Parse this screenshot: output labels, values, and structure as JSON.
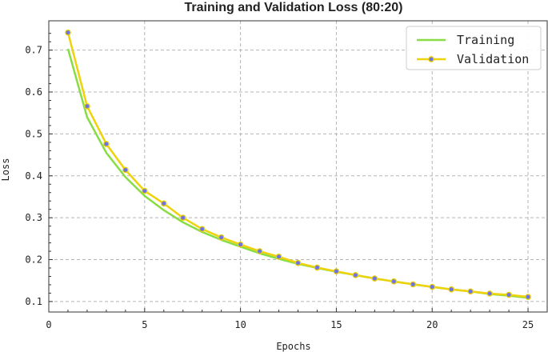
{
  "chart_data": {
    "type": "line",
    "title": "Training and Validation Loss (80:20)",
    "xlabel": "Epochs",
    "ylabel": "Loss",
    "xlim": [
      0,
      26
    ],
    "ylim": [
      0.075,
      0.77
    ],
    "xticks": [
      0,
      5,
      10,
      15,
      20,
      25
    ],
    "yticks": [
      0.1,
      0.2,
      0.3,
      0.4,
      0.5,
      0.6,
      0.7
    ],
    "grid": true,
    "legend_position": "top-right",
    "x": [
      1,
      2,
      3,
      4,
      5,
      6,
      7,
      8,
      9,
      10,
      11,
      12,
      13,
      14,
      15,
      16,
      17,
      18,
      19,
      20,
      21,
      22,
      23,
      24,
      25
    ],
    "series": [
      {
        "name": "Training",
        "color": "#88dd44",
        "marker": "none",
        "values": [
          0.703,
          0.54,
          0.455,
          0.397,
          0.352,
          0.318,
          0.289,
          0.266,
          0.247,
          0.231,
          0.215,
          0.202,
          0.19,
          0.18,
          0.171,
          0.163,
          0.155,
          0.148,
          0.141,
          0.135,
          0.129,
          0.124,
          0.118,
          0.114,
          0.109
        ]
      },
      {
        "name": "Validation",
        "color": "#eed20a",
        "marker": "circle",
        "marker_fill": "#6b73e6",
        "values": [
          0.742,
          0.566,
          0.476,
          0.414,
          0.364,
          0.334,
          0.3,
          0.273,
          0.253,
          0.236,
          0.22,
          0.207,
          0.192,
          0.181,
          0.172,
          0.163,
          0.155,
          0.148,
          0.141,
          0.135,
          0.129,
          0.124,
          0.119,
          0.116,
          0.111
        ]
      }
    ]
  }
}
